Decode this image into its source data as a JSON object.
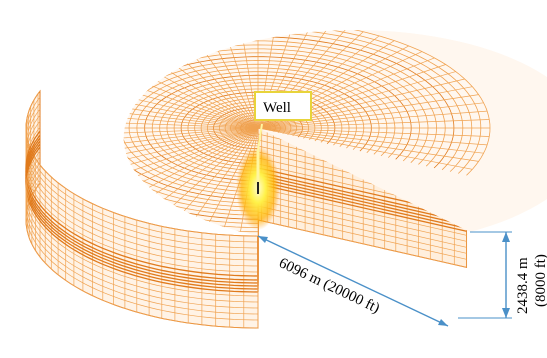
{
  "figure": {
    "well_label": "Well",
    "radius_label": "6096 m (20000 ft)",
    "height_label_metric": "2438.4 m",
    "height_label_imperial": "(8000 ft)"
  },
  "colors": {
    "mesh": "#e07a1c",
    "mesh_light": "#f0a352",
    "dimension": "#4a90c8",
    "well_core": "#fff24a",
    "well_glow": "#ffb300",
    "label_border": "#e8d43a"
  },
  "icons": {
    "well_marker": "well-glow-icon"
  }
}
